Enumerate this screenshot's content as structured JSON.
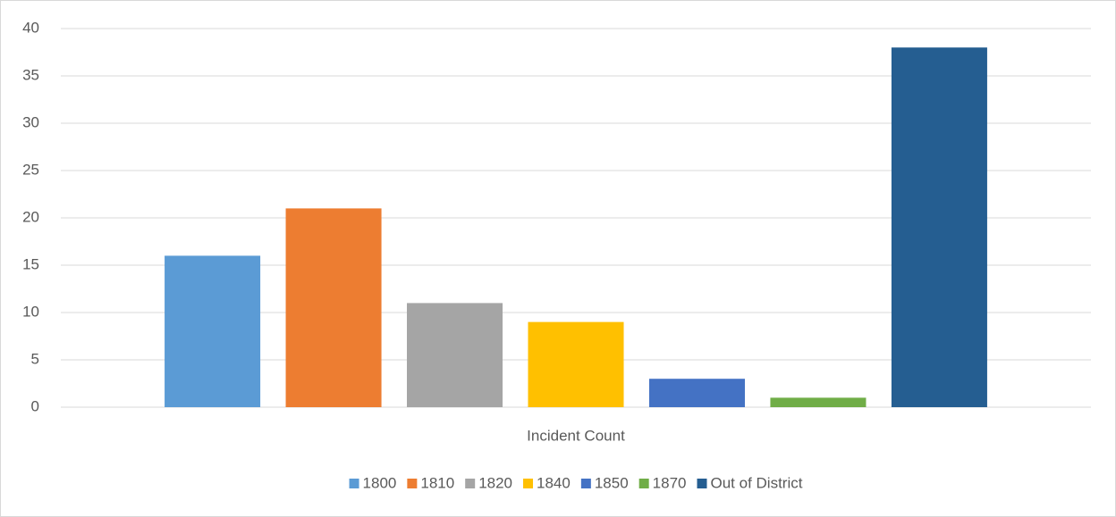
{
  "chart_data": {
    "type": "bar",
    "categories": [
      "Incident Count"
    ],
    "series": [
      {
        "name": "1800",
        "color": "#5b9bd5",
        "values": [
          16
        ]
      },
      {
        "name": "1810",
        "color": "#ed7d31",
        "values": [
          21
        ]
      },
      {
        "name": "1820",
        "color": "#a5a5a5",
        "values": [
          11
        ]
      },
      {
        "name": "1840",
        "color": "#ffc000",
        "values": [
          9
        ]
      },
      {
        "name": "1850",
        "color": "#4472c4",
        "values": [
          3
        ]
      },
      {
        "name": "1870",
        "color": "#70ad47",
        "values": [
          1
        ]
      },
      {
        "name": "Out of District",
        "color": "#255e91",
        "values": [
          38
        ]
      }
    ],
    "ylim": [
      0,
      40
    ],
    "yticks": [
      0,
      5,
      10,
      15,
      20,
      25,
      30,
      35,
      40
    ],
    "grid": true,
    "legend": "bottom"
  }
}
